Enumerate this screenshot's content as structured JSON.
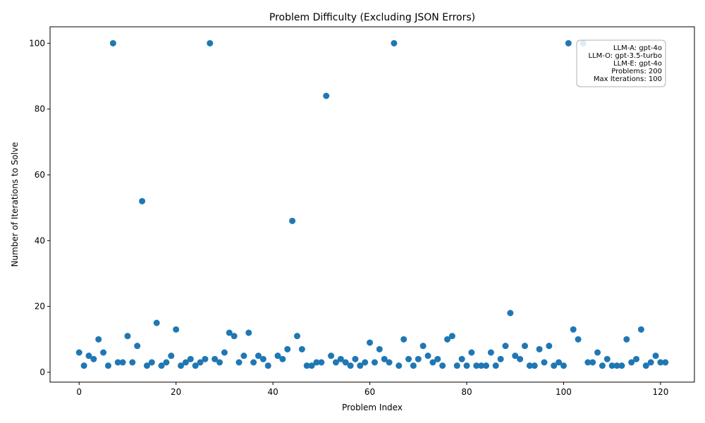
{
  "chart_data": {
    "type": "scatter",
    "title": "Problem Difficulty (Excluding JSON Errors)",
    "xlabel": "Problem Index",
    "ylabel": "Number of Iterations to Solve",
    "xlim": [
      -6,
      127
    ],
    "ylim": [
      -3,
      105
    ],
    "xticks": [
      0,
      20,
      40,
      60,
      80,
      100,
      120
    ],
    "yticks": [
      0,
      20,
      40,
      60,
      80,
      100
    ],
    "grid": false,
    "marker_color": "#1f77b4",
    "info_box": {
      "placement": "top-right",
      "lines": [
        "LLM-A: gpt-4o",
        "LLM-O: gpt-3.5-turbo",
        "LLM-E: gpt-4o",
        "Problems: 200",
        "Max Iterations: 100"
      ]
    },
    "points": [
      [
        0,
        6
      ],
      [
        1,
        2
      ],
      [
        2,
        5
      ],
      [
        3,
        4
      ],
      [
        4,
        10
      ],
      [
        5,
        6
      ],
      [
        6,
        2
      ],
      [
        7,
        100
      ],
      [
        8,
        3
      ],
      [
        9,
        3
      ],
      [
        10,
        11
      ],
      [
        11,
        3
      ],
      [
        12,
        8
      ],
      [
        13,
        52
      ],
      [
        14,
        2
      ],
      [
        15,
        3
      ],
      [
        16,
        15
      ],
      [
        17,
        2
      ],
      [
        18,
        3
      ],
      [
        19,
        5
      ],
      [
        20,
        13
      ],
      [
        21,
        2
      ],
      [
        22,
        3
      ],
      [
        23,
        4
      ],
      [
        24,
        2
      ],
      [
        25,
        3
      ],
      [
        26,
        4
      ],
      [
        27,
        100
      ],
      [
        28,
        4
      ],
      [
        29,
        3
      ],
      [
        30,
        6
      ],
      [
        31,
        12
      ],
      [
        32,
        11
      ],
      [
        33,
        3
      ],
      [
        34,
        5
      ],
      [
        35,
        12
      ],
      [
        36,
        3
      ],
      [
        37,
        5
      ],
      [
        38,
        4
      ],
      [
        39,
        2
      ],
      [
        41,
        5
      ],
      [
        42,
        4
      ],
      [
        43,
        7
      ],
      [
        44,
        46
      ],
      [
        45,
        11
      ],
      [
        46,
        7
      ],
      [
        47,
        2
      ],
      [
        48,
        2
      ],
      [
        49,
        3
      ],
      [
        50,
        3
      ],
      [
        51,
        84
      ],
      [
        52,
        5
      ],
      [
        53,
        3
      ],
      [
        54,
        4
      ],
      [
        55,
        3
      ],
      [
        56,
        2
      ],
      [
        57,
        4
      ],
      [
        58,
        2
      ],
      [
        59,
        3
      ],
      [
        60,
        9
      ],
      [
        61,
        3
      ],
      [
        62,
        7
      ],
      [
        63,
        4
      ],
      [
        64,
        3
      ],
      [
        65,
        100
      ],
      [
        66,
        2
      ],
      [
        67,
        10
      ],
      [
        68,
        4
      ],
      [
        69,
        2
      ],
      [
        70,
        4
      ],
      [
        71,
        8
      ],
      [
        72,
        5
      ],
      [
        73,
        3
      ],
      [
        74,
        4
      ],
      [
        75,
        2
      ],
      [
        76,
        10
      ],
      [
        77,
        11
      ],
      [
        78,
        2
      ],
      [
        79,
        4
      ],
      [
        80,
        2
      ],
      [
        81,
        6
      ],
      [
        82,
        2
      ],
      [
        83,
        2
      ],
      [
        84,
        2
      ],
      [
        85,
        6
      ],
      [
        86,
        2
      ],
      [
        87,
        4
      ],
      [
        88,
        8
      ],
      [
        89,
        18
      ],
      [
        90,
        5
      ],
      [
        91,
        4
      ],
      [
        92,
        8
      ],
      [
        93,
        2
      ],
      [
        94,
        2
      ],
      [
        95,
        7
      ],
      [
        96,
        3
      ],
      [
        97,
        8
      ],
      [
        98,
        2
      ],
      [
        99,
        3
      ],
      [
        100,
        2
      ],
      [
        101,
        100
      ],
      [
        102,
        13
      ],
      [
        103,
        10
      ],
      [
        104,
        100
      ],
      [
        105,
        3
      ],
      [
        106,
        3
      ],
      [
        107,
        6
      ],
      [
        108,
        2
      ],
      [
        109,
        4
      ],
      [
        110,
        2
      ],
      [
        111,
        2
      ],
      [
        112,
        2
      ],
      [
        113,
        10
      ],
      [
        114,
        3
      ],
      [
        115,
        4
      ],
      [
        116,
        13
      ],
      [
        117,
        2
      ],
      [
        118,
        3
      ],
      [
        119,
        5
      ],
      [
        120,
        3
      ],
      [
        121,
        3
      ]
    ]
  }
}
